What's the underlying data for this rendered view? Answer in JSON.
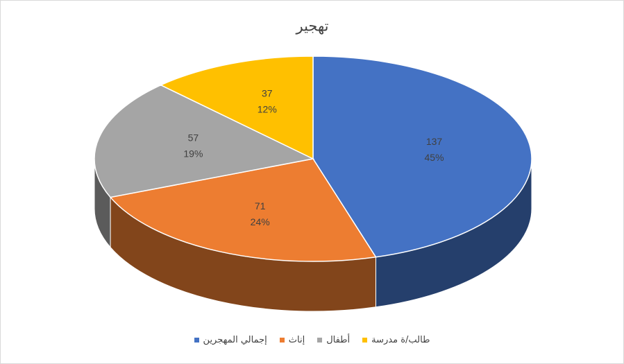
{
  "chart_data": {
    "type": "pie",
    "title": "تهجير",
    "categories": [
      "إجمالي المهجرين",
      "إناث",
      "أطفال",
      "طالب/ة مدرسة"
    ],
    "values": [
      137,
      71,
      57,
      37
    ],
    "percent_labels": [
      "45%",
      "24%",
      "19%",
      "12%"
    ],
    "colors": [
      "#4472c4",
      "#ed7d31",
      "#a5a5a5",
      "#ffc000"
    ],
    "legend": "bottom"
  }
}
